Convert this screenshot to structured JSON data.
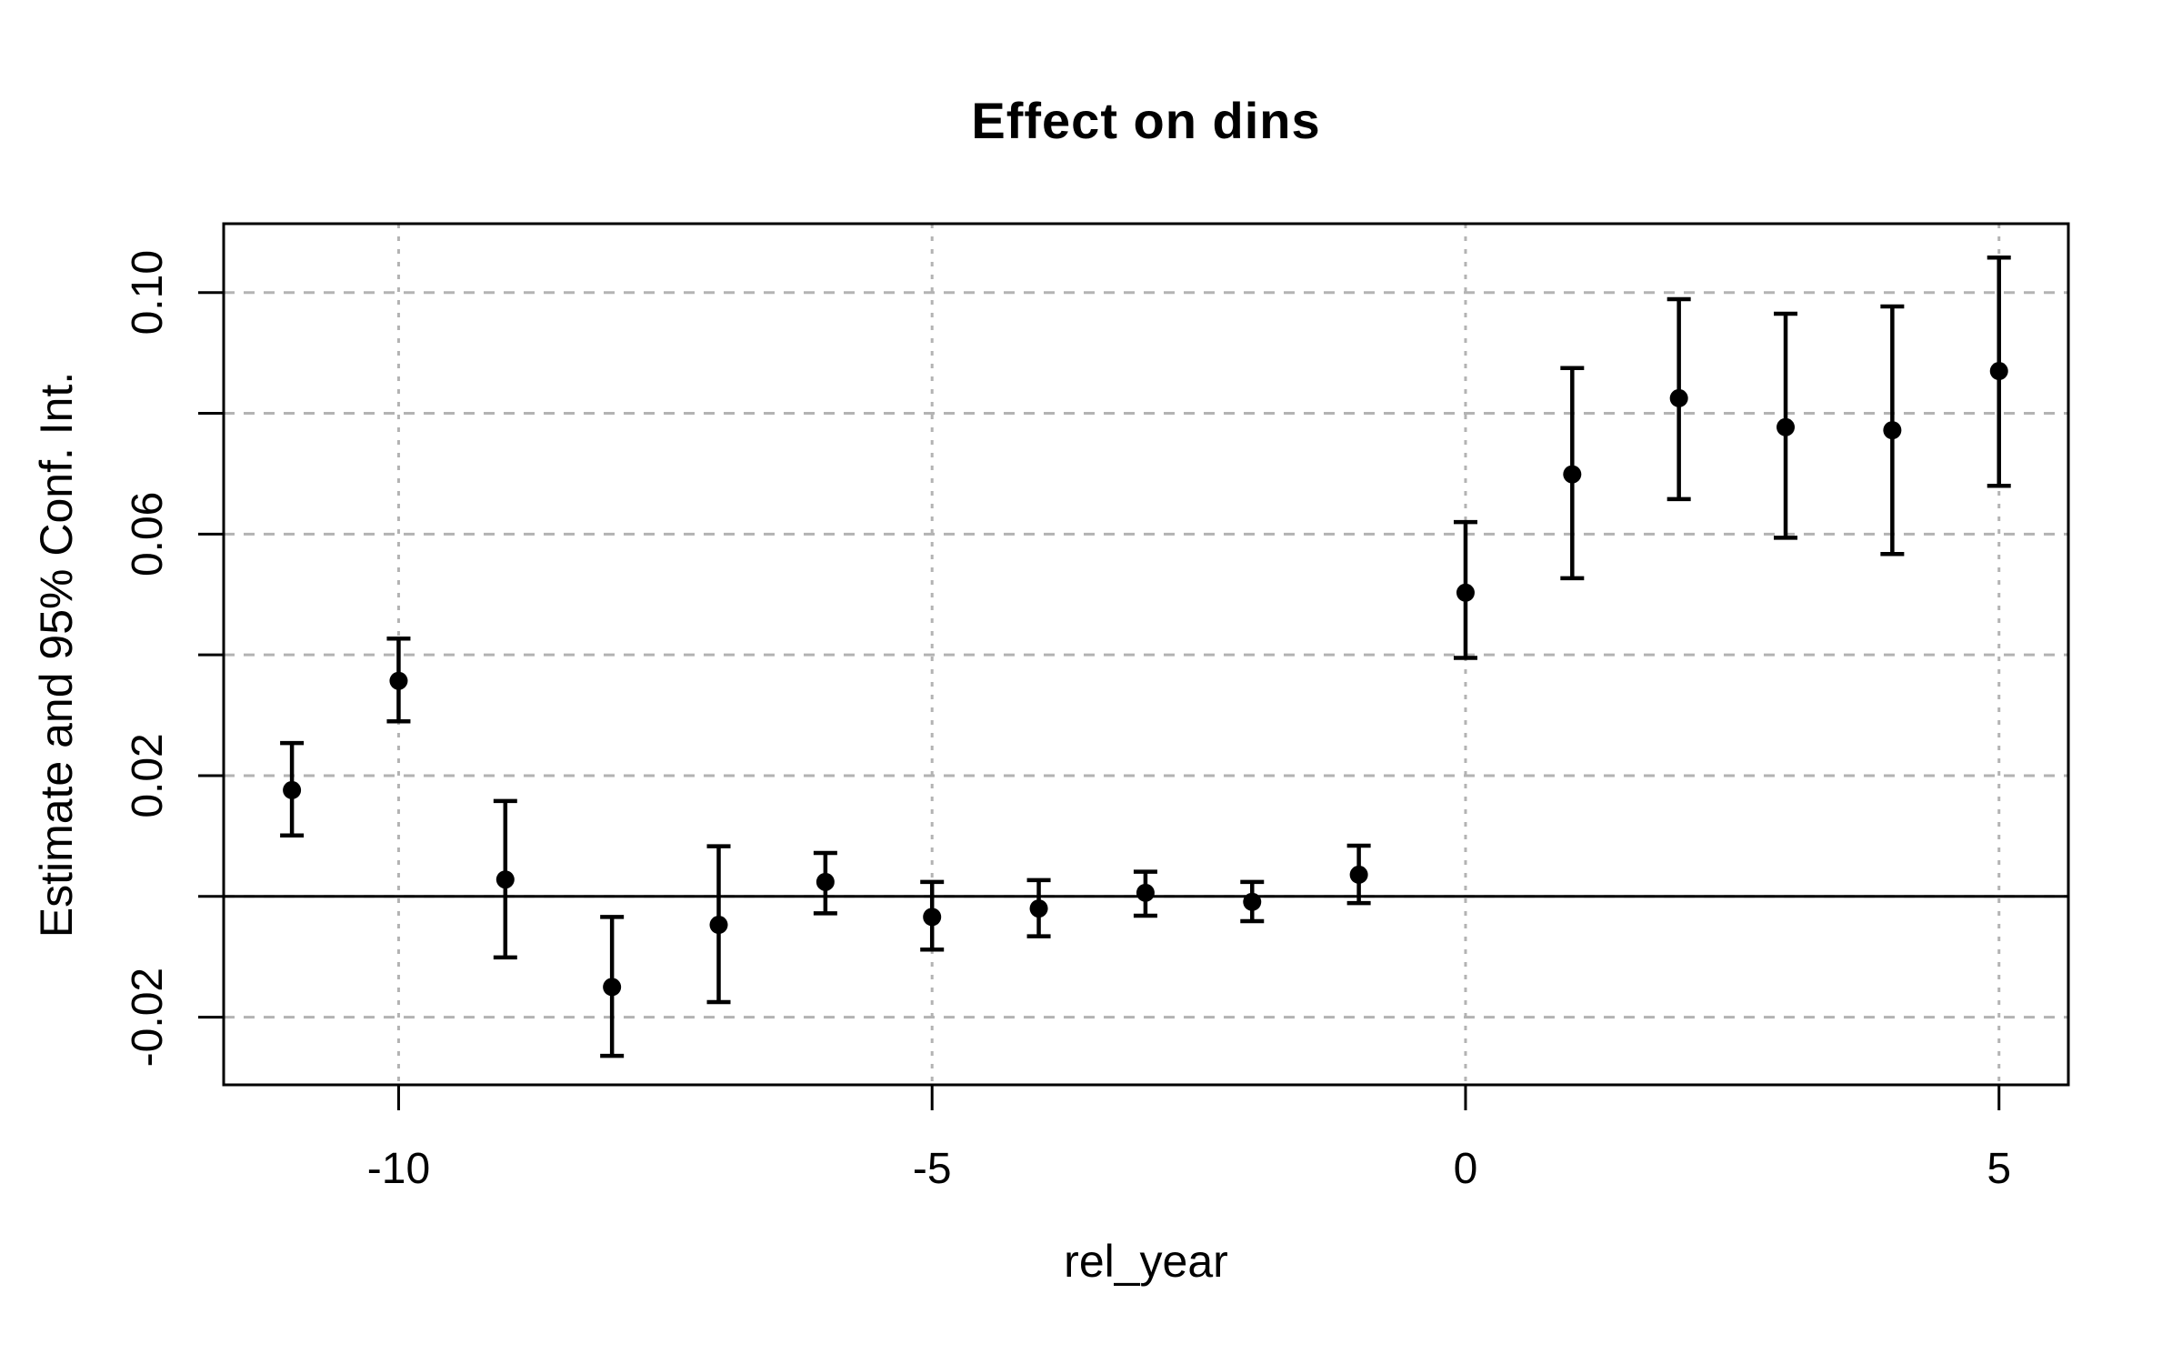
{
  "chart_data": {
    "type": "scatter",
    "title": "Effect on dins",
    "xlabel": "rel_year",
    "ylabel": "Estimate and 95% Conf. Int.",
    "x": [
      -11,
      -10,
      -9,
      -8,
      -7,
      -6,
      -5,
      -4,
      -3,
      -2,
      -1,
      0,
      1,
      2,
      3,
      4,
      5
    ],
    "series": [
      {
        "name": "estimate",
        "values": [
          0.0176,
          0.0357,
          0.0028,
          -0.015,
          -0.0047,
          0.0024,
          -0.0034,
          -0.002,
          0.0006,
          -0.0009,
          0.0036,
          0.0503,
          0.0699,
          0.0825,
          0.0777,
          0.0772,
          0.087
        ]
      },
      {
        "name": "ci_lower",
        "values": [
          0.0101,
          0.029,
          -0.0101,
          -0.0264,
          -0.0175,
          -0.0028,
          -0.0088,
          -0.0066,
          -0.0032,
          -0.0041,
          -0.0011,
          0.0395,
          0.0527,
          0.0658,
          0.0594,
          0.0567,
          0.068
        ]
      },
      {
        "name": "ci_upper",
        "values": [
          0.0254,
          0.0427,
          0.0158,
          -0.0034,
          0.0083,
          0.0072,
          0.0024,
          0.0027,
          0.0041,
          0.0024,
          0.0084,
          0.062,
          0.0875,
          0.0989,
          0.0965,
          0.0977,
          0.1058
        ]
      }
    ],
    "xlim": [
      -11.64,
      5.65
    ],
    "ylim": [
      -0.0312,
      0.1114
    ],
    "x_ticks": [
      {
        "value": -10,
        "label": "-10"
      },
      {
        "value": -5,
        "label": "-5"
      },
      {
        "value": 0,
        "label": "0"
      },
      {
        "value": 5,
        "label": "5"
      }
    ],
    "y_ticks": [
      {
        "value": -0.02,
        "label": "-0.02"
      },
      {
        "value": 0.0,
        "label": ""
      },
      {
        "value": 0.02,
        "label": "0.02"
      },
      {
        "value": 0.04,
        "label": ""
      },
      {
        "value": 0.06,
        "label": "0.06"
      },
      {
        "value": 0.08,
        "label": ""
      },
      {
        "value": 0.1,
        "label": "0.10"
      }
    ],
    "grid": true,
    "legend": "none",
    "zero_line": true,
    "marker": "filled-circle",
    "colors": {
      "marker": "#000000",
      "error_bar": "#000000",
      "grid": "#b3b3b3",
      "axis": "#000000",
      "zero_line": "#000000",
      "background": "#ffffff"
    }
  }
}
